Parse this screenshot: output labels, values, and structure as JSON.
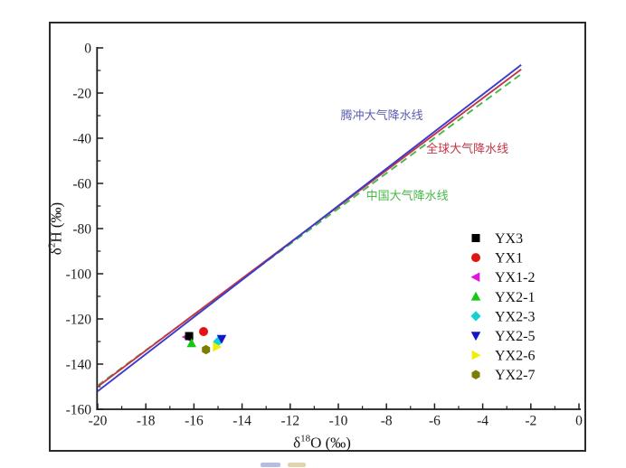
{
  "chart_data": {
    "type": "scatter",
    "title": "",
    "xlabel": {
      "prefix": "δ",
      "sup": "18",
      "main": "O (‰)"
    },
    "ylabel": {
      "prefix": "δ",
      "sup": "2",
      "main": "H (‰)"
    },
    "xlim": [
      -20,
      0
    ],
    "ylim": [
      -160,
      0
    ],
    "x_ticks": [
      -20,
      -18,
      -16,
      -14,
      -12,
      -10,
      -8,
      -6,
      -4,
      -2,
      0
    ],
    "y_ticks": [
      0,
      -20,
      -40,
      -60,
      -80,
      -100,
      -120,
      -140,
      -160
    ],
    "x_minor_step": 1,
    "y_minor_step": 10,
    "grid": false,
    "legend_position": "right-center",
    "lines": [
      {
        "name": "腾冲大气降水线",
        "style": "solid",
        "color": "#3a3ace",
        "x": [
          -20,
          -2.4
        ],
        "y": [
          -152,
          -7.5
        ],
        "label": {
          "x": -9.9,
          "y": -30,
          "color": "#5c5cb0"
        }
      },
      {
        "name": "全球大气降水线",
        "style": "solid",
        "color": "#c23648",
        "x": [
          -20,
          -2.4
        ],
        "y": [
          -150,
          -9.5
        ],
        "label": {
          "x": -6.35,
          "y": -44.8,
          "color": "#c23648"
        }
      },
      {
        "name": "中国大气降水线",
        "style": "dashed",
        "color": "#46b846",
        "x": [
          -20,
          -2.45
        ],
        "y": [
          -149.5,
          -12
        ],
        "label": {
          "x": -8.85,
          "y": -65.6,
          "color": "#46b846"
        }
      }
    ],
    "series": [
      {
        "name": "YX3",
        "marker": "square",
        "color": "#000000",
        "x": -16.2,
        "y": -127.6
      },
      {
        "name": "YX1",
        "marker": "circle",
        "color": "#e01414",
        "x": -15.6,
        "y": -125.6
      },
      {
        "name": "YX1-2",
        "marker": "triangle-left",
        "color": "#e014e0",
        "x": -16.3,
        "y": -128.0
      },
      {
        "name": "YX2-1",
        "marker": "triangle-up",
        "color": "#14c814",
        "x": -16.1,
        "y": -130.8
      },
      {
        "name": "YX2-3",
        "marker": "diamond",
        "color": "#14d2d2",
        "x": -15.0,
        "y": -130.0
      },
      {
        "name": "YX2-5",
        "marker": "triangle-down",
        "color": "#1414cd",
        "x": -14.85,
        "y": -128.8
      },
      {
        "name": "YX2-6",
        "marker": "triangle-right",
        "color": "#f0f000",
        "x": -15.05,
        "y": -132.4
      },
      {
        "name": "YX2-7",
        "marker": "hexagon",
        "color": "#7d7d00",
        "x": -15.5,
        "y": -133.6
      }
    ],
    "draw_order": [
      "YX1-2",
      "YX2-3",
      "YX3",
      "YX1",
      "YX2-1",
      "YX2-5",
      "YX2-6",
      "YX2-7"
    ],
    "axis_color": "#1c1c1c"
  }
}
